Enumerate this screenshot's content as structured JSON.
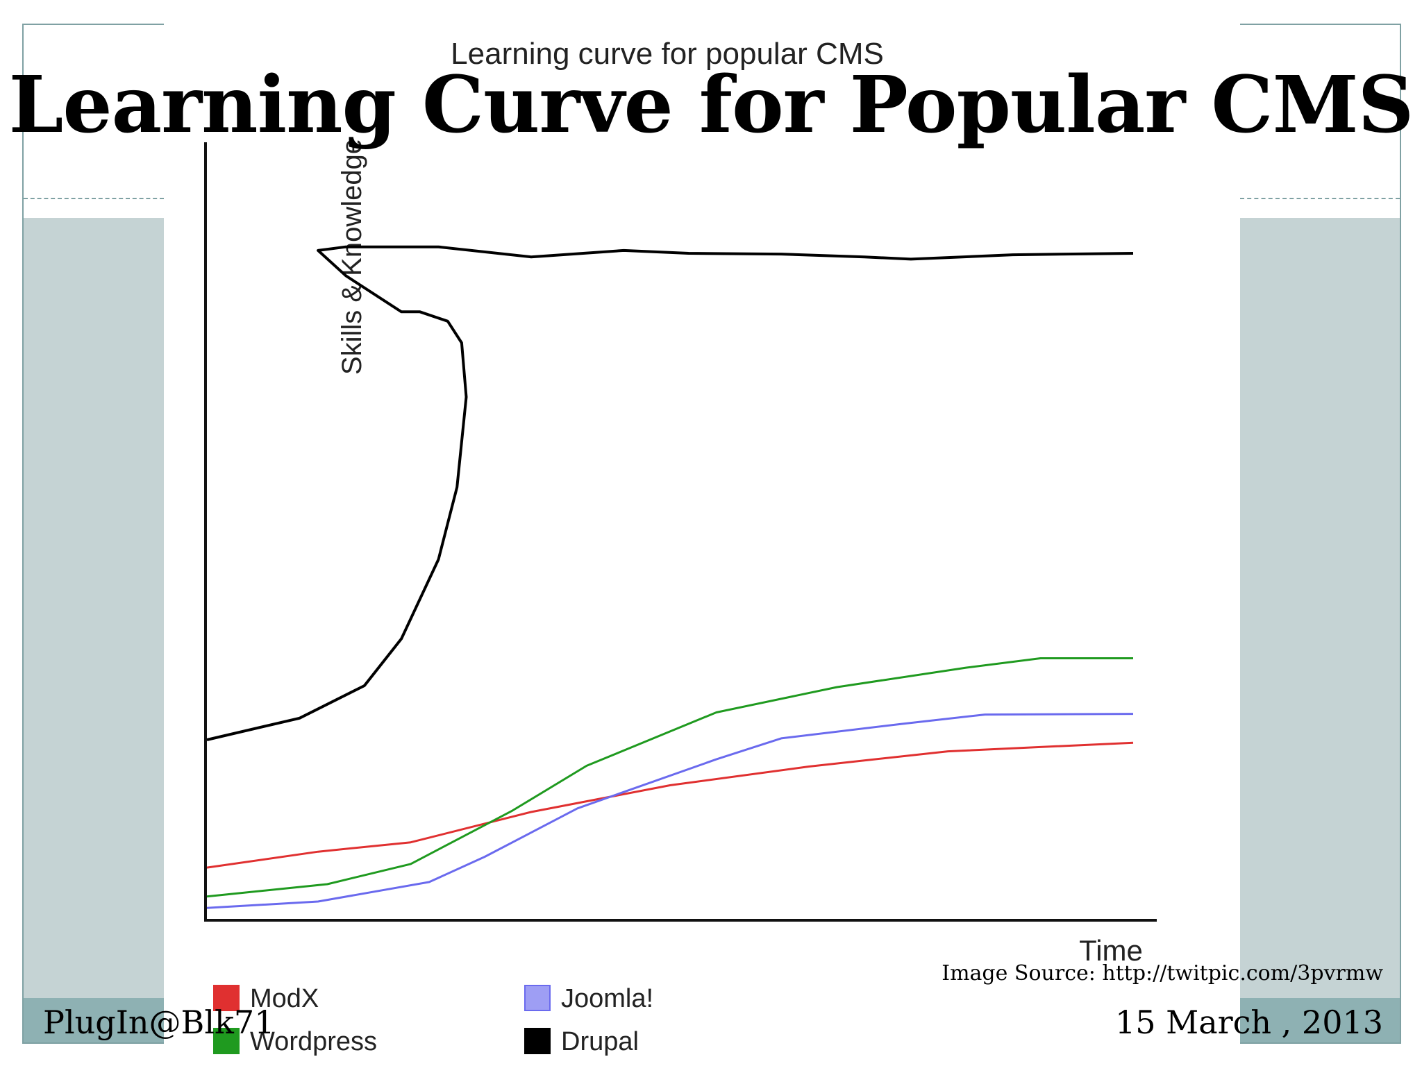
{
  "slide": {
    "title": "Learning Curve for Popular CMS",
    "image_source": "Image Source: http://twitpic.com/3pvrmw",
    "footer_left": "PlugIn@Blk71",
    "footer_right": "15 March , 2013"
  },
  "colors": {
    "frame": "#7fa1a3",
    "band": "#c5d3d4",
    "footer_band": "#8eb1b3"
  },
  "chart_data": {
    "type": "line",
    "title": "Learning curve for popular CMS",
    "xlabel": "Time",
    "ylabel": "Skills & Knowledge",
    "xlim": [
      0,
      100
    ],
    "ylim": [
      0,
      100
    ],
    "grid": false,
    "legend_position": "bottom",
    "series": [
      {
        "name": "ModX",
        "color": "#e03030",
        "x": [
          0,
          12,
          22,
          35,
          50,
          65,
          80,
          100
        ],
        "y": [
          7.3,
          9.5,
          10.8,
          15,
          18.7,
          21.3,
          23.4,
          24.6
        ]
      },
      {
        "name": "Wordpress",
        "color": "#1f9a1f",
        "x": [
          0,
          13,
          22,
          33,
          41,
          55,
          68,
          82,
          90,
          100
        ],
        "y": [
          3.3,
          5,
          7.8,
          15.2,
          21.4,
          28.8,
          32.3,
          35,
          36.3,
          36.3
        ]
      },
      {
        "name": "Joomla!",
        "color": "#6a6aee",
        "x": [
          0,
          12,
          24,
          30,
          40,
          55,
          62,
          75,
          84,
          100
        ],
        "y": [
          1.7,
          2.6,
          5.3,
          8.8,
          15.5,
          22.3,
          25.2,
          27.2,
          28.5,
          28.6
        ]
      },
      {
        "name": "Drupal",
        "color": "#000000",
        "x": [
          0,
          10,
          17,
          21,
          25,
          27,
          28,
          27.5,
          26,
          23,
          21,
          15,
          12,
          15,
          25,
          35,
          45,
          52,
          62,
          71,
          76,
          87,
          100
        ],
        "y": [
          25,
          28,
          32.5,
          39,
          50,
          60,
          72.5,
          80,
          83,
          84.3,
          84.3,
          89.3,
          92.8,
          93.3,
          93.3,
          91.9,
          92.8,
          92.4,
          92.3,
          91.9,
          91.6,
          92.2,
          92.4
        ]
      }
    ]
  }
}
